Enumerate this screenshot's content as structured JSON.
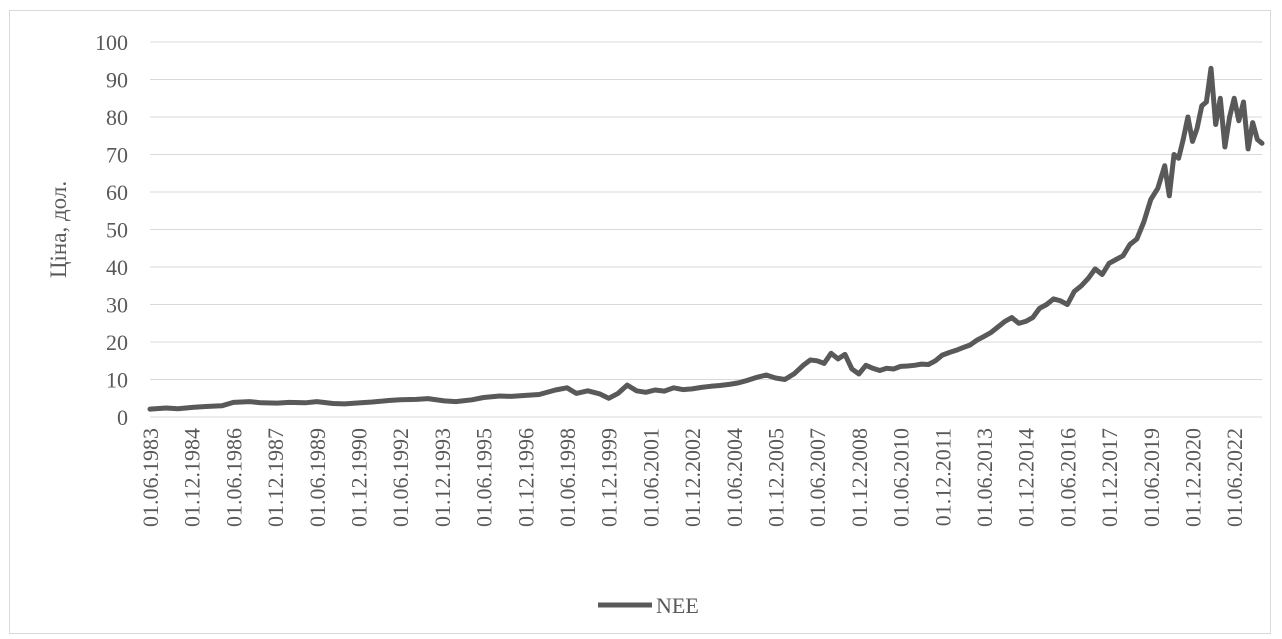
{
  "chart_data": {
    "type": "line",
    "title": "",
    "xlabel": "",
    "ylabel": "Ціна, дол.",
    "ylim": [
      0,
      100
    ],
    "yticks": [
      "0",
      "10",
      "20",
      "30",
      "40",
      "50",
      "60",
      "70",
      "80",
      "90",
      "100"
    ],
    "xticks": [
      "01.06.1983",
      "01.12.1984",
      "01.06.1986",
      "01.12.1987",
      "01.06.1989",
      "01.12.1990",
      "01.06.1992",
      "01.12.1993",
      "01.06.1995",
      "01.12.1996",
      "01.06.1998",
      "01.12.1999",
      "01.06.2001",
      "01.12.2002",
      "01.06.2004",
      "01.12.2005",
      "01.06.2007",
      "01.12.2008",
      "01.06.2010",
      "01.12.2011",
      "01.06.2013",
      "01.12.2014",
      "01.06.2016",
      "01.12.2017",
      "01.06.2019",
      "01.12.2020",
      "01.06.2022"
    ],
    "grid": true,
    "legend": "bottom",
    "color": "#595959",
    "series": [
      {
        "name": "NEE",
        "x": [
          "1983-06",
          "1984-01",
          "1984-06",
          "1985-01",
          "1985-06",
          "1986-01",
          "1986-06",
          "1987-01",
          "1987-06",
          "1988-01",
          "1988-06",
          "1989-01",
          "1989-06",
          "1990-01",
          "1990-06",
          "1991-01",
          "1991-06",
          "1992-01",
          "1992-06",
          "1993-01",
          "1993-06",
          "1994-01",
          "1994-06",
          "1995-01",
          "1995-06",
          "1996-01",
          "1996-06",
          "1997-01",
          "1997-06",
          "1998-01",
          "1998-06",
          "1998-10",
          "1999-03",
          "1999-08",
          "1999-12",
          "2000-04",
          "2000-08",
          "2000-12",
          "2001-04",
          "2001-08",
          "2001-12",
          "2002-04",
          "2002-08",
          "2002-12",
          "2003-04",
          "2003-08",
          "2003-12",
          "2004-04",
          "2004-08",
          "2004-12",
          "2005-04",
          "2005-08",
          "2005-12",
          "2006-04",
          "2006-08",
          "2006-12",
          "2007-03",
          "2007-06",
          "2007-09",
          "2007-12",
          "2008-03",
          "2008-06",
          "2008-09",
          "2008-12",
          "2009-03",
          "2009-06",
          "2009-09",
          "2009-12",
          "2010-03",
          "2010-06",
          "2010-09",
          "2010-12",
          "2011-03",
          "2011-06",
          "2011-09",
          "2011-12",
          "2012-03",
          "2012-06",
          "2012-09",
          "2012-12",
          "2013-03",
          "2013-06",
          "2013-09",
          "2013-12",
          "2014-03",
          "2014-06",
          "2014-09",
          "2014-12",
          "2015-03",
          "2015-06",
          "2015-09",
          "2015-12",
          "2016-03",
          "2016-06",
          "2016-09",
          "2016-12",
          "2017-03",
          "2017-06",
          "2017-09",
          "2017-12",
          "2018-03",
          "2018-06",
          "2018-09",
          "2018-12",
          "2019-03",
          "2019-06",
          "2019-09",
          "2019-12",
          "2020-02",
          "2020-04",
          "2020-06",
          "2020-08",
          "2020-10",
          "2020-12",
          "2021-02",
          "2021-04",
          "2021-06",
          "2021-08",
          "2021-10",
          "2021-12",
          "2022-02",
          "2022-04",
          "2022-06",
          "2022-08",
          "2022-10",
          "2022-12",
          "2023-02",
          "2023-04",
          "2023-06"
        ],
        "values": [
          2.1,
          2.4,
          2.2,
          2.6,
          2.8,
          3.0,
          3.9,
          4.1,
          3.8,
          3.7,
          3.9,
          3.8,
          4.1,
          3.6,
          3.5,
          3.8,
          4.0,
          4.4,
          4.6,
          4.7,
          4.9,
          4.3,
          4.1,
          4.6,
          5.2,
          5.6,
          5.5,
          5.8,
          6.0,
          7.2,
          7.8,
          6.3,
          7.0,
          6.2,
          5.0,
          6.3,
          8.5,
          7.0,
          6.6,
          7.2,
          6.9,
          7.8,
          7.3,
          7.5,
          7.9,
          8.2,
          8.4,
          8.7,
          9.1,
          9.8,
          10.6,
          11.2,
          10.4,
          10.0,
          11.5,
          13.8,
          15.2,
          15.0,
          14.3,
          17.0,
          15.5,
          16.7,
          12.8,
          11.5,
          13.8,
          13.0,
          12.4,
          13.0,
          12.8,
          13.5,
          13.6,
          13.8,
          14.1,
          14.0,
          15.0,
          16.5,
          17.2,
          17.8,
          18.5,
          19.2,
          20.5,
          21.5,
          22.5,
          24.0,
          25.5,
          26.5,
          25.0,
          25.5,
          26.5,
          29.0,
          30.0,
          31.5,
          31.0,
          30.0,
          33.5,
          35.0,
          37.0,
          39.5,
          38.0,
          41.0,
          42.0,
          43.0,
          46.0,
          47.5,
          52.0,
          58.0,
          61.0,
          67.0,
          59.0,
          70.0,
          69.0,
          74.0,
          80.0,
          73.5,
          77.0,
          83.0,
          84.0,
          93.0,
          78.0,
          85.0,
          72.0,
          80.0,
          85.0,
          79.0,
          84.0,
          71.5,
          78.5,
          74.0,
          73.0
        ]
      }
    ]
  }
}
